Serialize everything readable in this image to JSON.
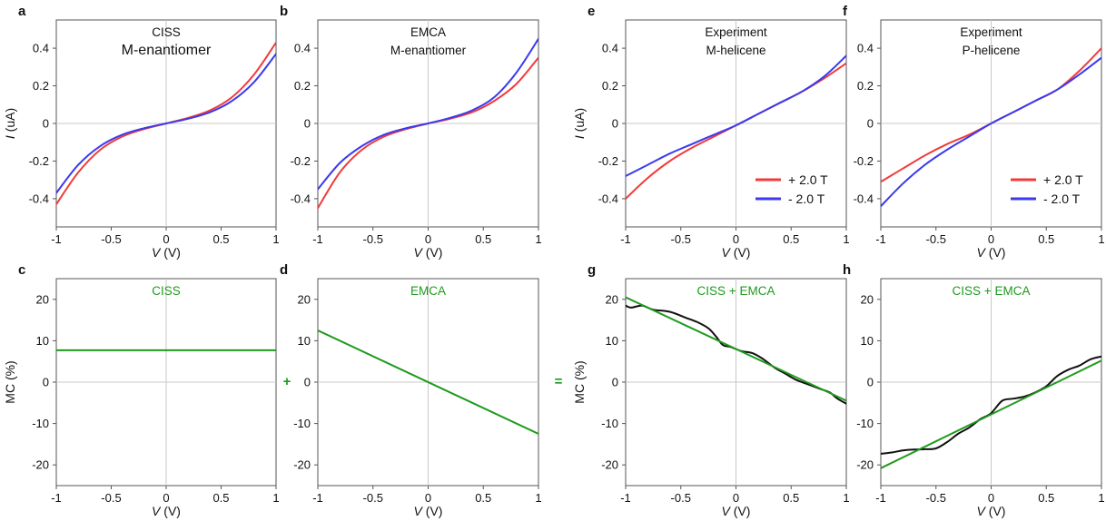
{
  "colors": {
    "red": "#f03b3b",
    "blue": "#3a3af0",
    "green": "#1e9a1e",
    "black": "#111111",
    "zero_line": "#c8c8c8",
    "axis": "#555555"
  },
  "operators": {
    "plus": "+",
    "equals": "="
  },
  "chart_data": [
    {
      "id": "a",
      "panel_letter": "a",
      "type": "line",
      "title_lines": [
        "CISS",
        "M-enantiomer"
      ],
      "xlabel_var": "V",
      "xlabel_unit": " (V)",
      "ylabel_var": "I",
      "ylabel_unit": " (uA)",
      "xlim": [
        -1,
        1
      ],
      "ylim": [
        -0.55,
        0.55
      ],
      "xticks": [
        -1,
        -0.5,
        0,
        0.5,
        1
      ],
      "xtick_labels": [
        "-1",
        "-0.5",
        "0",
        "0.5",
        "1"
      ],
      "yticks": [
        -0.4,
        -0.2,
        0,
        0.2,
        0.4
      ],
      "ytick_labels": [
        "-0.4",
        "-0.2",
        "0",
        "0.2",
        "0.4"
      ],
      "grid": "zero-lines",
      "series": [
        {
          "color": "red",
          "x": [
            -1,
            -0.8,
            -0.6,
            -0.4,
            -0.2,
            0,
            0.2,
            0.4,
            0.6,
            0.8,
            1
          ],
          "y": [
            -0.43,
            -0.26,
            -0.14,
            -0.07,
            -0.03,
            0,
            0.03,
            0.07,
            0.14,
            0.26,
            0.43
          ]
        },
        {
          "color": "blue",
          "x": [
            -1,
            -0.8,
            -0.6,
            -0.4,
            -0.2,
            0,
            0.2,
            0.4,
            0.6,
            0.8,
            1
          ],
          "y": [
            -0.37,
            -0.22,
            -0.12,
            -0.06,
            -0.025,
            0,
            0.025,
            0.06,
            0.12,
            0.22,
            0.37
          ]
        }
      ]
    },
    {
      "id": "b",
      "panel_letter": "b",
      "type": "line",
      "title_lines": [
        "EMCA",
        "M-enantiomer"
      ],
      "xlabel_var": "V",
      "xlabel_unit": " (V)",
      "ylabel_var": "",
      "ylabel_unit": "",
      "xlim": [
        -1,
        1
      ],
      "ylim": [
        -0.55,
        0.55
      ],
      "xticks": [
        -1,
        -0.5,
        0,
        0.5,
        1
      ],
      "xtick_labels": [
        "-1",
        "-0.5",
        "0",
        "0.5",
        "1"
      ],
      "yticks": [
        -0.4,
        -0.2,
        0,
        0.2,
        0.4
      ],
      "ytick_labels": [
        "-0.4",
        "-0.2",
        "0",
        "0.2",
        "0.4"
      ],
      "grid": "zero-lines",
      "series": [
        {
          "color": "red",
          "x": [
            -1,
            -0.8,
            -0.6,
            -0.4,
            -0.2,
            0,
            0.2,
            0.4,
            0.6,
            0.8,
            1
          ],
          "y": [
            -0.45,
            -0.26,
            -0.14,
            -0.07,
            -0.03,
            0,
            0.025,
            0.06,
            0.12,
            0.21,
            0.35
          ]
        },
        {
          "color": "blue",
          "x": [
            -1,
            -0.8,
            -0.6,
            -0.4,
            -0.2,
            0,
            0.2,
            0.4,
            0.6,
            0.8,
            1
          ],
          "y": [
            -0.35,
            -0.21,
            -0.12,
            -0.06,
            -0.025,
            0,
            0.03,
            0.07,
            0.14,
            0.27,
            0.45
          ]
        }
      ]
    },
    {
      "id": "e",
      "panel_letter": "e",
      "type": "line",
      "title_lines": [
        "Experiment",
        "M-helicene"
      ],
      "xlabel_var": "V",
      "xlabel_unit": " (V)",
      "ylabel_var": "I",
      "ylabel_unit": " (uA)",
      "xlim": [
        -1,
        1
      ],
      "ylim": [
        -0.55,
        0.55
      ],
      "xticks": [
        -1,
        -0.5,
        0,
        0.5,
        1
      ],
      "xtick_labels": [
        "-1",
        "-0.5",
        "0",
        "0.5",
        "1"
      ],
      "yticks": [
        -0.4,
        -0.2,
        0,
        0.2,
        0.4
      ],
      "ytick_labels": [
        "-0.4",
        "-0.2",
        "0",
        "0.2",
        "0.4"
      ],
      "grid": "zero-lines",
      "legend": {
        "placement": "bottom-right",
        "entries": [
          {
            "label": "+ 2.0 T",
            "color": "red"
          },
          {
            "label": "-  2.0 T",
            "color": "blue"
          }
        ]
      },
      "series": [
        {
          "name": "+ 2.0 T",
          "color": "red",
          "x": [
            -1,
            -0.8,
            -0.6,
            -0.4,
            -0.2,
            0,
            0.2,
            0.4,
            0.6,
            0.8,
            1
          ],
          "y": [
            -0.4,
            -0.29,
            -0.2,
            -0.13,
            -0.07,
            -0.01,
            0.05,
            0.11,
            0.17,
            0.24,
            0.32
          ]
        },
        {
          "name": "-  2.0 T",
          "color": "blue",
          "x": [
            -1,
            -0.8,
            -0.6,
            -0.4,
            -0.2,
            0,
            0.2,
            0.4,
            0.6,
            0.8,
            1
          ],
          "y": [
            -0.28,
            -0.22,
            -0.16,
            -0.11,
            -0.06,
            -0.01,
            0.05,
            0.11,
            0.17,
            0.25,
            0.36
          ]
        }
      ]
    },
    {
      "id": "f",
      "panel_letter": "f",
      "type": "line",
      "title_lines": [
        "Experiment",
        "P-helicene"
      ],
      "xlabel_var": "V",
      "xlabel_unit": " (V)",
      "ylabel_var": "",
      "ylabel_unit": "",
      "xlim": [
        -1,
        1
      ],
      "ylim": [
        -0.55,
        0.55
      ],
      "xticks": [
        -1,
        -0.5,
        0,
        0.5,
        1
      ],
      "xtick_labels": [
        "-1",
        "-0.5",
        "0",
        "0.5",
        "1"
      ],
      "yticks": [
        -0.4,
        -0.2,
        0,
        0.2,
        0.4
      ],
      "ytick_labels": [
        "-0.4",
        "-0.2",
        "0",
        "0.2",
        "0.4"
      ],
      "grid": "zero-lines",
      "legend": {
        "placement": "bottom-right",
        "entries": [
          {
            "label": "+ 2.0 T",
            "color": "red"
          },
          {
            "label": "-  2.0 T",
            "color": "blue"
          }
        ]
      },
      "series": [
        {
          "name": "+ 2.0 T",
          "color": "red",
          "x": [
            -1,
            -0.8,
            -0.6,
            -0.4,
            -0.2,
            0,
            0.2,
            0.4,
            0.6,
            0.8,
            1
          ],
          "y": [
            -0.31,
            -0.24,
            -0.17,
            -0.11,
            -0.06,
            0,
            0.06,
            0.12,
            0.18,
            0.28,
            0.4
          ]
        },
        {
          "name": "-  2.0 T",
          "color": "blue",
          "x": [
            -1,
            -0.8,
            -0.6,
            -0.4,
            -0.2,
            0,
            0.2,
            0.4,
            0.6,
            0.8,
            1
          ],
          "y": [
            -0.44,
            -0.32,
            -0.22,
            -0.14,
            -0.07,
            0,
            0.06,
            0.12,
            0.18,
            0.26,
            0.35
          ]
        }
      ]
    },
    {
      "id": "c",
      "panel_letter": "c",
      "type": "line",
      "title_lines": [
        "CISS"
      ],
      "title_color": "green",
      "xlabel_var": "V",
      "xlabel_unit": " (V)",
      "ylabel_var": "",
      "ylabel_unit": "MC (%)",
      "xlim": [
        -1,
        1
      ],
      "ylim": [
        -25,
        25
      ],
      "xticks": [
        -1,
        -0.5,
        0,
        0.5,
        1
      ],
      "xtick_labels": [
        "-1",
        "-0.5",
        "0",
        "0.5",
        "1"
      ],
      "yticks": [
        -20,
        -10,
        0,
        10,
        20
      ],
      "ytick_labels": [
        "-20",
        "-10",
        "0",
        "10",
        "20"
      ],
      "grid": "zero-lines",
      "series": [
        {
          "color": "green",
          "x": [
            -1,
            1
          ],
          "y": [
            7.7,
            7.7
          ]
        }
      ]
    },
    {
      "id": "d",
      "panel_letter": "d",
      "type": "line",
      "title_lines": [
        "EMCA"
      ],
      "title_color": "green",
      "xlabel_var": "V",
      "xlabel_unit": " (V)",
      "ylabel_var": "",
      "ylabel_unit": "",
      "xlim": [
        -1,
        1
      ],
      "ylim": [
        -25,
        25
      ],
      "xticks": [
        -1,
        -0.5,
        0,
        0.5,
        1
      ],
      "xtick_labels": [
        "-1",
        "-0.5",
        "0",
        "0.5",
        "1"
      ],
      "yticks": [
        -20,
        -10,
        0,
        10,
        20
      ],
      "ytick_labels": [
        "-20",
        "-10",
        "0",
        "10",
        "20"
      ],
      "grid": "zero-lines",
      "series": [
        {
          "color": "green",
          "x": [
            -1,
            1
          ],
          "y": [
            12.5,
            -12.5
          ]
        }
      ]
    },
    {
      "id": "g",
      "panel_letter": "g",
      "type": "line",
      "title_lines": [
        "CISS + EMCA"
      ],
      "title_color": "green",
      "xlabel_var": "V",
      "xlabel_unit": " (V)",
      "ylabel_var": "",
      "ylabel_unit": "MC (%)",
      "xlim": [
        -1,
        1
      ],
      "ylim": [
        -25,
        25
      ],
      "xticks": [
        -1,
        -0.5,
        0,
        0.5,
        1
      ],
      "xtick_labels": [
        "-1",
        "-0.5",
        "0",
        "0.5",
        "1"
      ],
      "yticks": [
        -20,
        -10,
        0,
        10,
        20
      ],
      "ytick_labels": [
        "-20",
        "-10",
        "0",
        "10",
        "20"
      ],
      "grid": "zero-lines",
      "series": [
        {
          "color": "black",
          "x": [
            -1,
            -0.95,
            -0.85,
            -0.75,
            -0.6,
            -0.45,
            -0.35,
            -0.25,
            -0.18,
            -0.12,
            -0.05,
            0.05,
            0.15,
            0.25,
            0.35,
            0.45,
            0.55,
            0.65,
            0.75,
            0.85,
            0.92,
            1
          ],
          "y": [
            18.5,
            18,
            18.5,
            17.5,
            17,
            15.5,
            14.5,
            13,
            11,
            9,
            8.5,
            7.5,
            7,
            5.5,
            3.5,
            2,
            0.5,
            -0.5,
            -1.5,
            -2.5,
            -4,
            -5.2
          ]
        },
        {
          "color": "green",
          "x": [
            -1,
            1
          ],
          "y": [
            20.5,
            -4.5
          ]
        }
      ]
    },
    {
      "id": "h",
      "panel_letter": "h",
      "type": "line",
      "title_lines": [
        "CISS + EMCA"
      ],
      "title_color": "green",
      "xlabel_var": "V",
      "xlabel_unit": " (V)",
      "ylabel_var": "",
      "ylabel_unit": "",
      "xlim": [
        -1,
        1
      ],
      "ylim": [
        -25,
        25
      ],
      "xticks": [
        -1,
        -0.5,
        0,
        0.5,
        1
      ],
      "xtick_labels": [
        "-1",
        "-0.5",
        "0",
        "0.5",
        "1"
      ],
      "yticks": [
        -20,
        -10,
        0,
        10,
        20
      ],
      "ytick_labels": [
        "-20",
        "-10",
        "0",
        "10",
        "20"
      ],
      "grid": "zero-lines",
      "series": [
        {
          "color": "black",
          "x": [
            -1,
            -0.9,
            -0.8,
            -0.7,
            -0.6,
            -0.5,
            -0.4,
            -0.3,
            -0.2,
            -0.1,
            0,
            0.1,
            0.2,
            0.3,
            0.4,
            0.5,
            0.6,
            0.7,
            0.8,
            0.9,
            1
          ],
          "y": [
            -17.3,
            -17,
            -16.5,
            -16.3,
            -16.2,
            -16,
            -14.5,
            -12.5,
            -11,
            -9,
            -7.5,
            -4.5,
            -4,
            -3.5,
            -2.5,
            -1,
            1.5,
            3,
            4,
            5.5,
            6.2
          ]
        },
        {
          "color": "green",
          "x": [
            -1,
            1
          ],
          "y": [
            -20.8,
            5.2
          ]
        }
      ]
    }
  ]
}
